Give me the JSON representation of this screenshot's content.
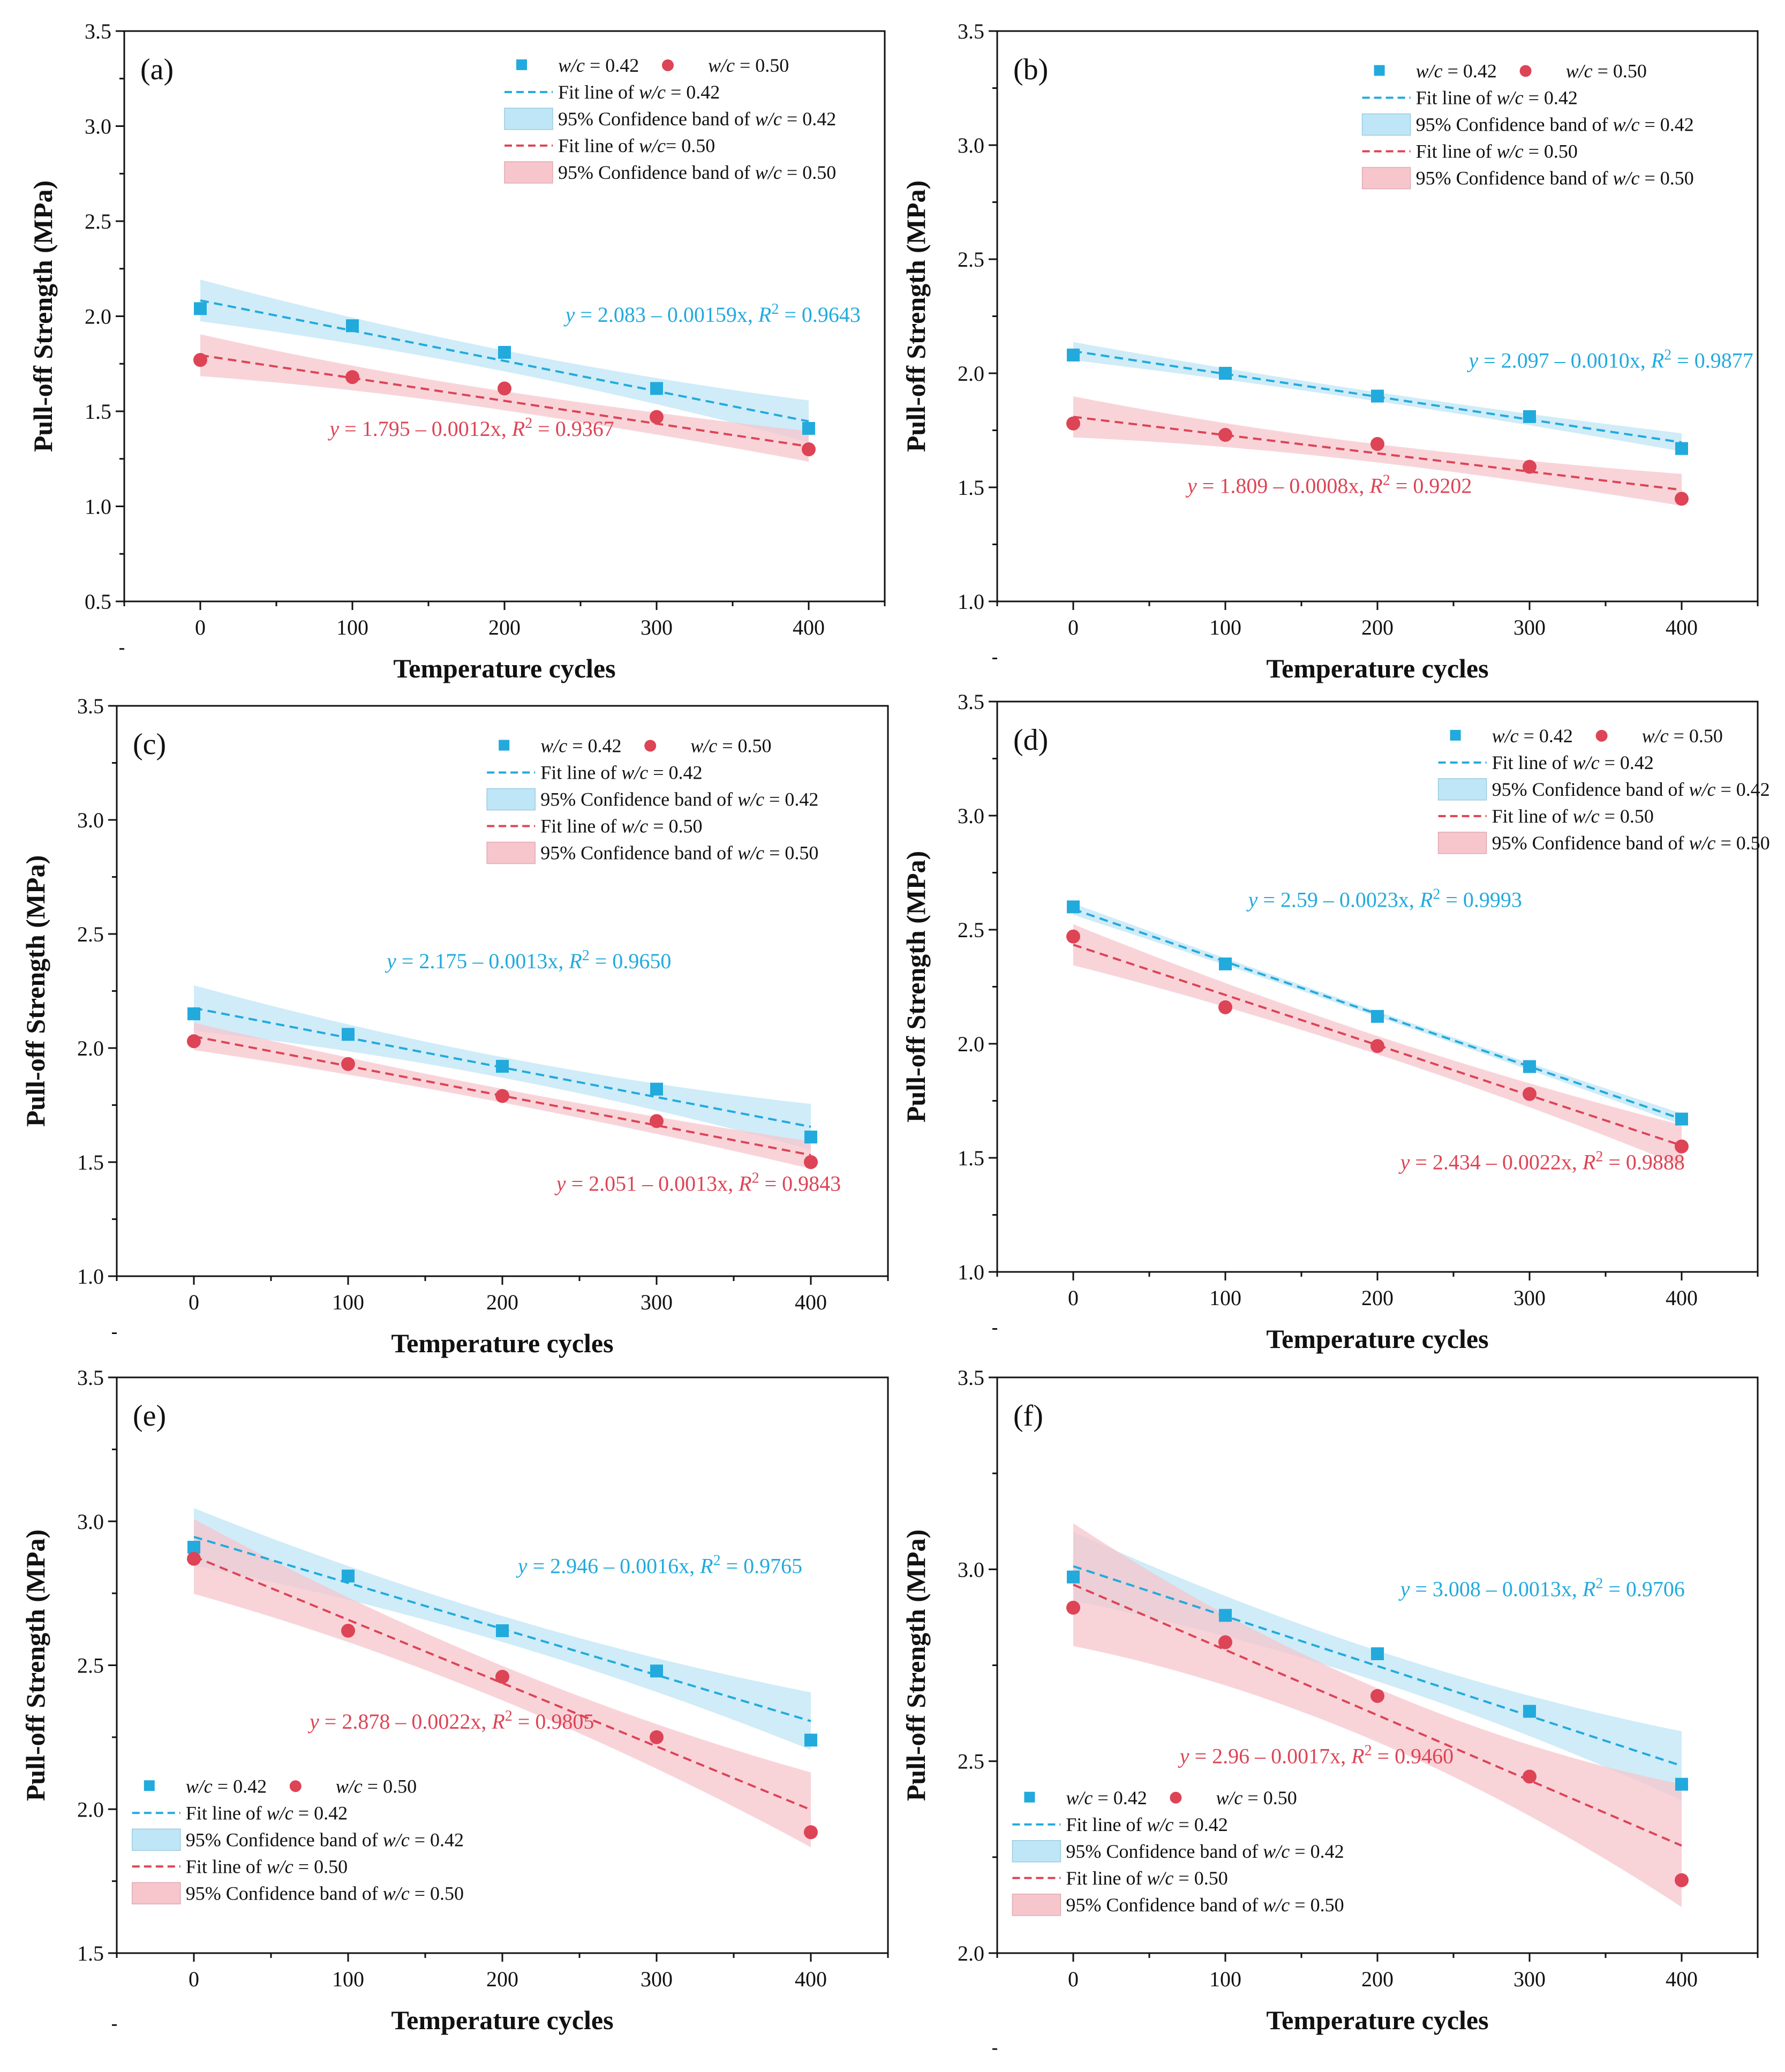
{
  "colors": {
    "s042": "#22aadd",
    "s050": "#dd4455",
    "band042": "#bfe6f6",
    "band050": "#f6c6cc"
  },
  "legend_labels": {
    "s042": "w/c = 0.42",
    "s050": "w/c = 0.50",
    "fit042": "Fit line of w/c = 0.42",
    "band042": "95% Confidence band of w/c = 0.42",
    "fit050": "Fit line of w/c = 0.50",
    "band050": "95% Confidence band of w/c = 0.50",
    "fit050_a": "Fit line of w/c= 0.50"
  },
  "chart_data": [
    {
      "panel": "(a)",
      "type": "scatter",
      "xlabel": "Temperature cycles",
      "ylabel": "Pull-off Strength (MPa)",
      "x": [
        0,
        100,
        200,
        300,
        400
      ],
      "xlim": [
        -50,
        450
      ],
      "ylim": [
        0.5,
        3.5
      ],
      "yticks": [
        "0.5",
        "1.0",
        "1.5",
        "2.0",
        "2.5",
        "3.0",
        "3.5"
      ],
      "xticks": [
        "0",
        "100",
        "200",
        "300",
        "400"
      ],
      "legend_position": "top-right",
      "series": [
        {
          "name": "w/c = 0.42",
          "values": [
            2.04,
            1.95,
            1.81,
            1.62,
            1.41
          ],
          "fit": [
            2.083,
            -0.00159
          ],
          "band_halfwidth": [
            0.11,
            0.055,
            0.11
          ],
          "equation": "y = 2.083 – 0.00159x, R² = 0.9643"
        },
        {
          "name": "w/c = 0.50",
          "values": [
            1.77,
            1.68,
            1.62,
            1.47,
            1.3
          ],
          "fit": [
            1.795,
            -0.0012
          ],
          "band_halfwidth": [
            0.11,
            0.05,
            0.08
          ],
          "equation": "y = 1.795 – 0.0012x, R² = 0.9367"
        }
      ]
    },
    {
      "panel": "(b)",
      "type": "scatter",
      "xlabel": "Temperature cycles",
      "ylabel": "Pull-off Strength (MPa)",
      "x": [
        0,
        100,
        200,
        300,
        400
      ],
      "xlim": [
        -50,
        450
      ],
      "ylim": [
        1.0,
        3.5
      ],
      "yticks": [
        "1.0",
        "1.5",
        "2.0",
        "2.5",
        "3.0",
        "3.5"
      ],
      "xticks": [
        "0",
        "100",
        "200",
        "300",
        "400"
      ],
      "legend_position": "top-right",
      "series": [
        {
          "name": "w/c = 0.42",
          "values": [
            2.08,
            2.0,
            1.9,
            1.81,
            1.67
          ],
          "fit": [
            2.097,
            -0.001
          ],
          "band_halfwidth": [
            0.04,
            0.02,
            0.04
          ],
          "equation": "y = 2.097 – 0.0010x, R² = 0.9877"
        },
        {
          "name": "w/c = 0.50",
          "values": [
            1.78,
            1.73,
            1.69,
            1.59,
            1.45
          ],
          "fit": [
            1.809,
            -0.0008
          ],
          "band_halfwidth": [
            0.09,
            0.04,
            0.07
          ],
          "equation": "y = 1.809 – 0.0008x, R² = 0.9202"
        }
      ]
    },
    {
      "panel": "(c)",
      "type": "scatter",
      "xlabel": "Temperature cycles",
      "ylabel": "Pull-off Strength (MPa)",
      "x": [
        0,
        100,
        200,
        300,
        400
      ],
      "xlim": [
        -50,
        450
      ],
      "ylim": [
        1.0,
        3.5
      ],
      "yticks": [
        "1.0",
        "1.5",
        "2.0",
        "2.5",
        "3.0",
        "3.5"
      ],
      "xticks": [
        "0",
        "100",
        "200",
        "300",
        "400"
      ],
      "legend_position": "top-right",
      "series": [
        {
          "name": "w/c = 0.42",
          "values": [
            2.15,
            2.06,
            1.92,
            1.82,
            1.61
          ],
          "fit": [
            2.175,
            -0.0013
          ],
          "band_halfwidth": [
            0.1,
            0.045,
            0.1
          ],
          "equation": "y = 2.175 – 0.0013x, R² = 0.9650"
        },
        {
          "name": "w/c = 0.50",
          "values": [
            2.03,
            1.93,
            1.79,
            1.68,
            1.5
          ],
          "fit": [
            2.051,
            -0.0013
          ],
          "band_halfwidth": [
            0.06,
            0.03,
            0.06
          ],
          "equation": "y = 2.051 – 0.0013x, R² = 0.9843"
        }
      ]
    },
    {
      "panel": "(d)",
      "type": "scatter",
      "xlabel": "Temperature cycles",
      "ylabel": "Pull-off Strength (MPa)",
      "x": [
        0,
        100,
        200,
        300,
        400
      ],
      "xlim": [
        -50,
        450
      ],
      "ylim": [
        1.0,
        3.5
      ],
      "yticks": [
        "1.0",
        "1.5",
        "2.0",
        "2.5",
        "3.0",
        "3.5"
      ],
      "xticks": [
        "0",
        "100",
        "200",
        "300",
        "400"
      ],
      "legend_position": "top-right",
      "series": [
        {
          "name": "w/c = 0.42",
          "values": [
            2.6,
            2.35,
            2.12,
            1.9,
            1.67
          ],
          "fit": [
            2.59,
            -0.0023
          ],
          "band_halfwidth": [
            0.025,
            0.012,
            0.025
          ],
          "equation": "y = 2.59 – 0.0023x, R² = 0.9993"
        },
        {
          "name": "w/c = 0.50",
          "values": [
            2.47,
            2.16,
            1.99,
            1.78,
            1.55
          ],
          "fit": [
            2.434,
            -0.0022
          ],
          "band_halfwidth": [
            0.09,
            0.04,
            0.09
          ],
          "equation": "y = 2.434 – 0.0022x, R² = 0.9888"
        }
      ]
    },
    {
      "panel": "(e)",
      "type": "scatter",
      "xlabel": "Temperature cycles",
      "ylabel": "Pull-off Strength (MPa)",
      "x": [
        0,
        100,
        200,
        300,
        400
      ],
      "xlim": [
        -50,
        450
      ],
      "ylim": [
        1.5,
        3.5
      ],
      "yticks": [
        "1.5",
        "2.0",
        "2.5",
        "3.0",
        "3.5"
      ],
      "xticks": [
        "0",
        "100",
        "200",
        "300",
        "400"
      ],
      "legend_position": "bottom-left",
      "series": [
        {
          "name": "w/c = 0.42",
          "values": [
            2.91,
            2.81,
            2.62,
            2.48,
            2.24
          ],
          "fit": [
            2.946,
            -0.0016
          ],
          "band_halfwidth": [
            0.1,
            0.045,
            0.1
          ],
          "equation": "y = 2.946 – 0.0016x, R² = 0.9765"
        },
        {
          "name": "w/c = 0.50",
          "values": [
            2.87,
            2.62,
            2.46,
            2.25,
            1.92
          ],
          "fit": [
            2.878,
            -0.0022
          ],
          "band_halfwidth": [
            0.13,
            0.06,
            0.13
          ],
          "equation": "y = 2.878 – 0.0022x, R² = 0.9805"
        }
      ]
    },
    {
      "panel": "(f)",
      "type": "scatter",
      "xlabel": "Temperature cycles",
      "ylabel": "Pull-off Strength (MPa)",
      "x": [
        0,
        100,
        200,
        300,
        400
      ],
      "xlim": [
        -50,
        450
      ],
      "ylim": [
        2.0,
        3.5
      ],
      "yticks": [
        "2.0",
        "2.5",
        "3.0",
        "3.5"
      ],
      "xticks": [
        "0",
        "100",
        "200",
        "300",
        "400"
      ],
      "legend_position": "bottom-left",
      "series": [
        {
          "name": "w/c = 0.42",
          "values": [
            2.98,
            2.88,
            2.78,
            2.63,
            2.44
          ],
          "fit": [
            3.008,
            -0.0013
          ],
          "band_halfwidth": [
            0.09,
            0.04,
            0.09
          ],
          "equation": "y = 3.008 – 0.0013x, R² = 0.9706"
        },
        {
          "name": "w/c = 0.50",
          "values": [
            2.9,
            2.81,
            2.67,
            2.46,
            2.19
          ],
          "fit": [
            2.96,
            -0.0017
          ],
          "band_halfwidth": [
            0.16,
            0.07,
            0.16
          ],
          "equation": "y = 2.96 – 0.0017x, R² = 0.9460"
        }
      ]
    }
  ]
}
